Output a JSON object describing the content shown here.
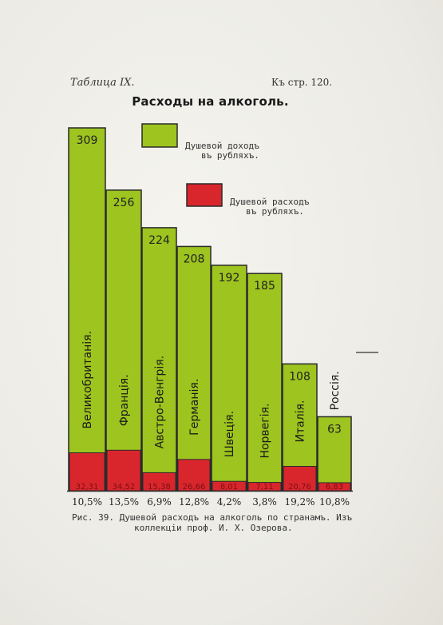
{
  "header": {
    "table_label": "Таблица IX.",
    "page_ref": "Къ стр. 120."
  },
  "caption": {
    "line1": "Рис. 39. Душевой расходъ на алкоголь по странамъ. Изъ",
    "line2": "коллекціи проф. И. Х. Озерова."
  },
  "colors": {
    "income": "#9dc41f",
    "expense": "#d9262d",
    "outline": "#2a2a2a"
  },
  "chart_data": {
    "type": "bar",
    "title": "Расходы на алкоголь.",
    "legend": [
      {
        "label_line1": "Душевой доходъ",
        "label_line2": "въ рубляхъ.",
        "color": "#9dc41f"
      },
      {
        "label_line1": "Душевой расходъ",
        "label_line2": "въ рубляхъ.",
        "color": "#d9262d"
      }
    ],
    "categories": [
      "Великобританія.",
      "Франція.",
      "Австро-Венгрія.",
      "Германія.",
      "Швеція.",
      "Норвегія.",
      "Италія.",
      "Россія."
    ],
    "series": [
      {
        "name": "Душевой доходъ въ рубляхъ.",
        "values": [
          309,
          256,
          224,
          208,
          192,
          185,
          108,
          63
        ]
      },
      {
        "name": "Душевой расходъ въ рубляхъ.",
        "values": [
          32.31,
          34.52,
          15.38,
          26.66,
          8.01,
          7.11,
          20.76,
          6.83
        ]
      }
    ],
    "income_labels": [
      "309",
      "256",
      "224",
      "208",
      "192",
      "185",
      "108",
      "63"
    ],
    "expense_labels": [
      "32,31",
      "34,52",
      "15,38",
      "26,66",
      "8,01",
      "7,11",
      "20,76",
      "6,83"
    ],
    "percent_labels": [
      "10,5%",
      "13,5%",
      "6,9%",
      "12,8%",
      "4,2%",
      "3,8%",
      "19,2%",
      "10,8%"
    ],
    "ylim": [
      0,
      309
    ]
  }
}
